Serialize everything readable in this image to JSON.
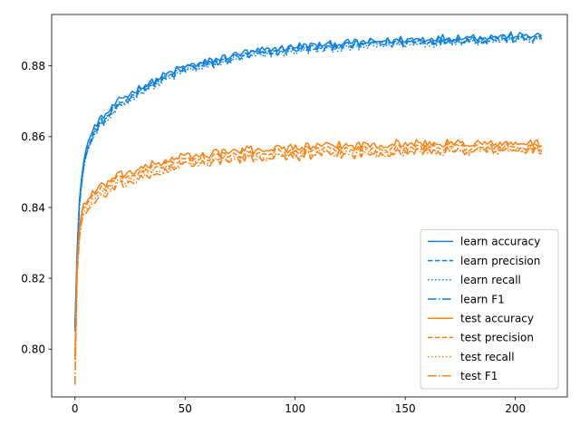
{
  "chart_data": {
    "type": "line",
    "title": "",
    "xlabel": "",
    "ylabel": "",
    "xlim": [
      -10.6,
      223.6
    ],
    "ylim": [
      0.7865,
      0.8945
    ],
    "xticks": [
      0,
      50,
      100,
      150,
      200
    ],
    "xtick_labels": [
      "0",
      "50",
      "100",
      "150",
      "200"
    ],
    "yticks": [
      0.8,
      0.82,
      0.84,
      0.86,
      0.88
    ],
    "ytick_labels": [
      "0.80",
      "0.82",
      "0.84",
      "0.86",
      "0.88"
    ],
    "grid": false,
    "legend_position": "lower-right",
    "epochs": 213,
    "colors": {
      "learn": "#1f77b4",
      "learn_display": "#0a7fe6",
      "test": "#ff7f0e"
    },
    "series": [
      {
        "name": "learn accuracy",
        "group": "learn",
        "linestyle": "solid",
        "anchors": {
          "x": [
            0,
            1,
            2,
            3,
            5,
            10,
            20,
            30,
            40,
            50,
            60,
            75,
            100,
            125,
            150,
            175,
            200,
            212
          ],
          "y": [
            0.807,
            0.828,
            0.842,
            0.848,
            0.857,
            0.864,
            0.87,
            0.874,
            0.877,
            0.88,
            0.881,
            0.8835,
            0.8855,
            0.8865,
            0.8875,
            0.888,
            0.8885,
            0.8885
          ]
        },
        "noise": 0.0012
      },
      {
        "name": "learn precision",
        "group": "learn",
        "linestyle": "dashed",
        "anchors": {
          "x": [
            0,
            1,
            2,
            3,
            5,
            10,
            20,
            30,
            40,
            50,
            60,
            75,
            100,
            125,
            150,
            175,
            200,
            212
          ],
          "y": [
            0.806,
            0.827,
            0.841,
            0.847,
            0.856,
            0.863,
            0.869,
            0.8735,
            0.8765,
            0.8795,
            0.8805,
            0.883,
            0.885,
            0.886,
            0.887,
            0.8875,
            0.888,
            0.888
          ]
        },
        "noise": 0.0012
      },
      {
        "name": "learn recall",
        "group": "learn",
        "linestyle": "dotted",
        "anchors": {
          "x": [
            0,
            1,
            2,
            3,
            5,
            10,
            20,
            30,
            40,
            50,
            60,
            75,
            100,
            125,
            150,
            175,
            200,
            212
          ],
          "y": [
            0.805,
            0.826,
            0.84,
            0.846,
            0.855,
            0.862,
            0.868,
            0.8725,
            0.8755,
            0.8785,
            0.8795,
            0.882,
            0.884,
            0.885,
            0.886,
            0.8868,
            0.8872,
            0.8872
          ]
        },
        "noise": 0.0012
      },
      {
        "name": "learn F1",
        "group": "learn",
        "linestyle": "dashdot",
        "anchors": {
          "x": [
            0,
            1,
            2,
            3,
            5,
            10,
            20,
            30,
            40,
            50,
            60,
            75,
            100,
            125,
            150,
            175,
            200,
            212
          ],
          "y": [
            0.805,
            0.8265,
            0.8405,
            0.8465,
            0.8555,
            0.8625,
            0.8685,
            0.873,
            0.876,
            0.879,
            0.88,
            0.8825,
            0.8845,
            0.8855,
            0.8865,
            0.887,
            0.8876,
            0.8876
          ]
        },
        "noise": 0.0012
      },
      {
        "name": "test accuracy",
        "group": "test",
        "linestyle": "solid",
        "anchors": {
          "x": [
            0,
            1,
            2,
            3,
            5,
            10,
            20,
            30,
            40,
            50,
            60,
            75,
            100,
            125,
            150,
            175,
            200,
            212
          ],
          "y": [
            0.798,
            0.824,
            0.834,
            0.839,
            0.842,
            0.845,
            0.849,
            0.851,
            0.853,
            0.8545,
            0.855,
            0.856,
            0.857,
            0.8575,
            0.858,
            0.858,
            0.858,
            0.858
          ]
        },
        "noise": 0.0014
      },
      {
        "name": "test precision",
        "group": "test",
        "linestyle": "dashed",
        "anchors": {
          "x": [
            0,
            1,
            2,
            3,
            5,
            10,
            20,
            30,
            40,
            50,
            60,
            75,
            100,
            125,
            150,
            175,
            200,
            212
          ],
          "y": [
            0.797,
            0.823,
            0.833,
            0.838,
            0.841,
            0.844,
            0.848,
            0.85,
            0.852,
            0.8535,
            0.854,
            0.855,
            0.856,
            0.8565,
            0.857,
            0.857,
            0.857,
            0.857
          ]
        },
        "noise": 0.0014
      },
      {
        "name": "test recall",
        "group": "test",
        "linestyle": "dotted",
        "anchors": {
          "x": [
            0,
            1,
            2,
            3,
            5,
            10,
            20,
            30,
            40,
            50,
            60,
            75,
            100,
            125,
            150,
            175,
            200,
            212
          ],
          "y": [
            0.792,
            0.822,
            0.832,
            0.837,
            0.84,
            0.843,
            0.847,
            0.849,
            0.851,
            0.8525,
            0.853,
            0.854,
            0.855,
            0.8555,
            0.856,
            0.856,
            0.8563,
            0.8563
          ]
        },
        "noise": 0.0014
      },
      {
        "name": "test F1",
        "group": "test",
        "linestyle": "dashdot",
        "anchors": {
          "x": [
            0,
            1,
            2,
            3,
            5,
            10,
            20,
            30,
            40,
            50,
            60,
            75,
            100,
            125,
            150,
            175,
            200,
            212
          ],
          "y": [
            0.79,
            0.821,
            0.831,
            0.836,
            0.839,
            0.842,
            0.846,
            0.848,
            0.85,
            0.852,
            0.8525,
            0.8535,
            0.8545,
            0.855,
            0.8555,
            0.8558,
            0.856,
            0.856
          ]
        },
        "noise": 0.0014
      }
    ]
  }
}
